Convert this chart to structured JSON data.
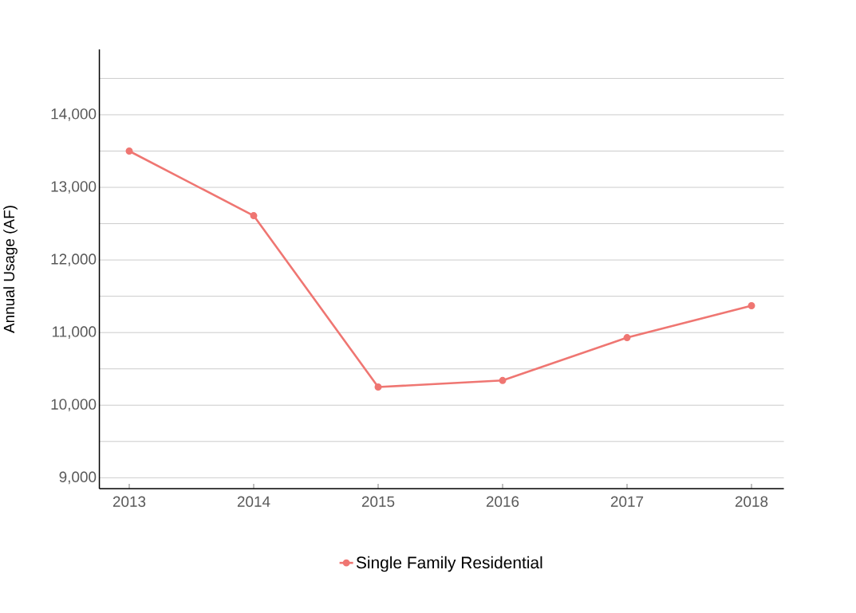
{
  "chart_data": {
    "type": "line",
    "ylabel": "Annual Usage (AF)",
    "categories": [
      "2013",
      "2014",
      "2015",
      "2016",
      "2017",
      "2018"
    ],
    "series": [
      {
        "name": "Single Family Residential",
        "color": "#ef7672",
        "values": [
          13500,
          12610,
          10250,
          10340,
          10930,
          11370
        ]
      }
    ],
    "ylim": [
      8850,
      14900
    ],
    "yticks": [
      {
        "value": 9000,
        "label": "9,000"
      },
      {
        "value": 9500,
        "label": null
      },
      {
        "value": 10000,
        "label": "10,000"
      },
      {
        "value": 10500,
        "label": null
      },
      {
        "value": 11000,
        "label": "11,000"
      },
      {
        "value": 11500,
        "label": null
      },
      {
        "value": 12000,
        "label": "12,000"
      },
      {
        "value": 12500,
        "label": null
      },
      {
        "value": 13000,
        "label": "13,000"
      },
      {
        "value": 13500,
        "label": null
      },
      {
        "value": 14000,
        "label": "14,000"
      },
      {
        "value": 14500,
        "label": null
      }
    ],
    "grid": "y",
    "legend": "bottom",
    "marker": "circle",
    "line_style": "solid"
  }
}
